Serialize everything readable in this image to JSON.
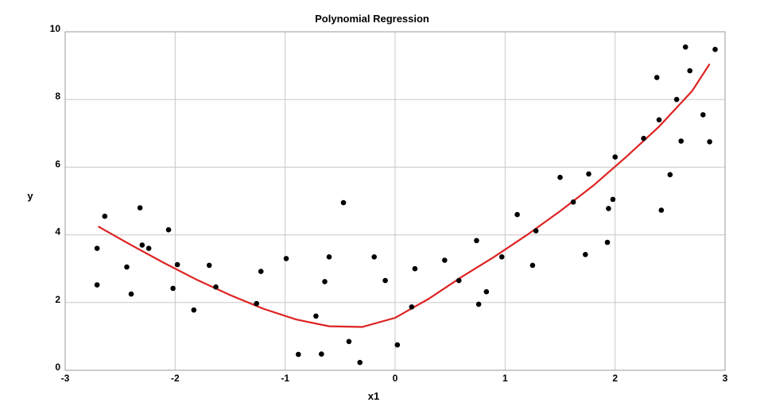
{
  "chart_data": {
    "type": "scatter",
    "title": "Polynomial Regression",
    "xlabel": "x1",
    "ylabel": "y",
    "xlim": [
      -3,
      3
    ],
    "ylim": [
      0,
      10
    ],
    "x_ticks": [
      "-3",
      "-2",
      "-1",
      "0",
      "1",
      "2",
      "3"
    ],
    "y_ticks": [
      "0",
      "2",
      "4",
      "6",
      "8",
      "10"
    ],
    "grid": true,
    "colors": {
      "points": "#000000",
      "fit_line": "#dd2222",
      "grid": "#c8c8c8",
      "frame": "#9a9a9a"
    },
    "series": [
      {
        "kind": "scatter",
        "points": [
          [
            -2.71,
            3.6
          ],
          [
            -2.71,
            2.52
          ],
          [
            -2.64,
            4.55
          ],
          [
            -2.44,
            3.05
          ],
          [
            -2.4,
            2.25
          ],
          [
            -2.32,
            4.8
          ],
          [
            -2.3,
            3.7
          ],
          [
            -2.24,
            3.6
          ],
          [
            -2.06,
            4.15
          ],
          [
            -2.02,
            2.42
          ],
          [
            -1.98,
            3.12
          ],
          [
            -1.83,
            1.78
          ],
          [
            -1.69,
            3.1
          ],
          [
            -1.63,
            2.46
          ],
          [
            -1.26,
            1.97
          ],
          [
            -1.22,
            2.92
          ],
          [
            -0.99,
            3.3
          ],
          [
            -0.88,
            0.47
          ],
          [
            -0.72,
            1.6
          ],
          [
            -0.67,
            0.48
          ],
          [
            -0.64,
            2.62
          ],
          [
            -0.6,
            3.35
          ],
          [
            -0.47,
            4.95
          ],
          [
            -0.42,
            0.85
          ],
          [
            -0.32,
            0.23
          ],
          [
            -0.19,
            3.35
          ],
          [
            -0.09,
            2.65
          ],
          [
            0.02,
            0.75
          ],
          [
            0.15,
            1.87
          ],
          [
            0.18,
            3.0
          ],
          [
            0.45,
            3.25
          ],
          [
            0.58,
            2.65
          ],
          [
            0.74,
            3.83
          ],
          [
            0.76,
            1.95
          ],
          [
            0.83,
            2.32
          ],
          [
            0.97,
            3.35
          ],
          [
            1.11,
            4.6
          ],
          [
            1.25,
            3.1
          ],
          [
            1.28,
            4.12
          ],
          [
            1.5,
            5.7
          ],
          [
            1.62,
            4.97
          ],
          [
            1.73,
            3.42
          ],
          [
            1.76,
            5.8
          ],
          [
            1.93,
            3.78
          ],
          [
            1.94,
            4.78
          ],
          [
            1.98,
            5.05
          ],
          [
            2.0,
            6.3
          ],
          [
            2.26,
            6.85
          ],
          [
            2.38,
            8.65
          ],
          [
            2.4,
            7.4
          ],
          [
            2.42,
            4.73
          ],
          [
            2.5,
            5.78
          ],
          [
            2.56,
            8.0
          ],
          [
            2.6,
            6.77
          ],
          [
            2.64,
            9.55
          ],
          [
            2.68,
            8.85
          ],
          [
            2.8,
            7.55
          ],
          [
            2.86,
            6.75
          ],
          [
            2.91,
            9.48
          ]
        ]
      },
      {
        "kind": "line",
        "points": [
          [
            -2.7,
            4.25
          ],
          [
            -2.4,
            3.7
          ],
          [
            -2.1,
            3.17
          ],
          [
            -1.8,
            2.67
          ],
          [
            -1.5,
            2.22
          ],
          [
            -1.2,
            1.82
          ],
          [
            -0.9,
            1.5
          ],
          [
            -0.6,
            1.3
          ],
          [
            -0.3,
            1.28
          ],
          [
            0.0,
            1.55
          ],
          [
            0.3,
            2.1
          ],
          [
            0.6,
            2.75
          ],
          [
            0.9,
            3.35
          ],
          [
            1.2,
            4.0
          ],
          [
            1.5,
            4.7
          ],
          [
            1.8,
            5.45
          ],
          [
            2.1,
            6.3
          ],
          [
            2.4,
            7.2
          ],
          [
            2.7,
            8.25
          ],
          [
            2.86,
            9.05
          ]
        ]
      }
    ]
  }
}
